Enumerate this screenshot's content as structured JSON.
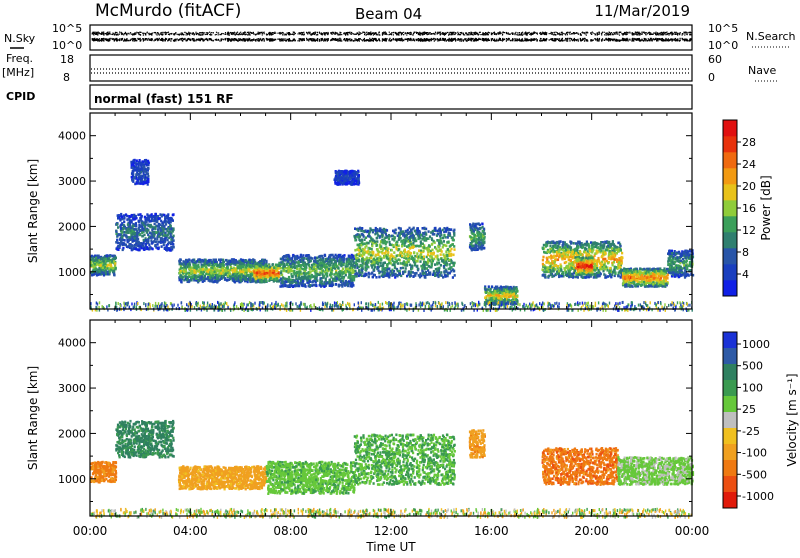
{
  "header": {
    "station": "McMurdo (fitACF)",
    "beam": "Beam 04",
    "date": "11/Mar/2019"
  },
  "noise_panel": {
    "left_label": "N.Sky",
    "right_label": "N.Search",
    "left_ticks": [
      "10^5",
      "10^0"
    ],
    "right_ticks": [
      "10^5",
      "10^0"
    ]
  },
  "freq_panel": {
    "left_label_1": "Freq.",
    "left_label_2": "[MHz]",
    "left_ticks": [
      "18",
      "8"
    ],
    "right_label": "Nave",
    "right_ticks": [
      "60",
      "0"
    ]
  },
  "cpid_panel": {
    "label": "CPID",
    "text": "normal (fast) 151 RF"
  },
  "x_axis": {
    "label": "Time UT",
    "ticks": [
      "00:00",
      "04:00",
      "08:00",
      "12:00",
      "16:00",
      "20:00",
      "00:00"
    ]
  },
  "chart_data": [
    {
      "type": "heatmap",
      "name": "power",
      "ylabel": "Slant Range [km]",
      "yticks": [
        "1000",
        "2000",
        "3000",
        "4000"
      ],
      "ylim": [
        180,
        4500
      ],
      "xlim_hours": [
        0,
        24
      ],
      "colorbar": {
        "label": "Power [dB]",
        "ticks": [
          "4",
          "8",
          "12",
          "16",
          "20",
          "24",
          "28"
        ],
        "range": [
          0,
          32
        ],
        "colors": [
          "#1020e6",
          "#1a3fbf",
          "#2855a8",
          "#2f7f6f",
          "#3b9f5a",
          "#8fcc3a",
          "#e8c21a",
          "#f29a12",
          "#f06a10",
          "#e8320c",
          "#e01010"
        ]
      },
      "echo_regions": [
        {
          "t": [
            0.0,
            1.0
          ],
          "r": [
            950,
            1400
          ],
          "level": 16
        },
        {
          "t": [
            1.0,
            3.3
          ],
          "r": [
            1500,
            2300
          ],
          "level": 9
        },
        {
          "t": [
            1.6,
            2.3
          ],
          "r": [
            2950,
            3500
          ],
          "level": 6
        },
        {
          "t": [
            3.5,
            7.0
          ],
          "r": [
            800,
            1300
          ],
          "level": 16
        },
        {
          "t": [
            6.5,
            7.5
          ],
          "r": [
            800,
            1200
          ],
          "level": 24
        },
        {
          "t": [
            7.5,
            10.5
          ],
          "r": [
            700,
            1400
          ],
          "level": 14
        },
        {
          "t": [
            9.7,
            10.7
          ],
          "r": [
            2950,
            3250
          ],
          "level": 5
        },
        {
          "t": [
            10.5,
            14.5
          ],
          "r": [
            900,
            2000
          ],
          "level": 16
        },
        {
          "t": [
            15.1,
            15.7
          ],
          "r": [
            1500,
            2100
          ],
          "level": 13
        },
        {
          "t": [
            15.7,
            17.0
          ],
          "r": [
            300,
            700
          ],
          "level": 18
        },
        {
          "t": [
            18.0,
            21.2
          ],
          "r": [
            900,
            1700
          ],
          "level": 20
        },
        {
          "t": [
            19.3,
            20.0
          ],
          "r": [
            950,
            1350
          ],
          "level": 28
        },
        {
          "t": [
            21.2,
            23.0
          ],
          "r": [
            700,
            1100
          ],
          "level": 22
        },
        {
          "t": [
            23.0,
            24.0
          ],
          "r": [
            900,
            1500
          ],
          "level": 12
        }
      ]
    },
    {
      "type": "heatmap",
      "name": "velocity",
      "ylabel": "Slant Range [km]",
      "yticks": [
        "1000",
        "2000",
        "3000",
        "4000"
      ],
      "ylim": [
        180,
        4500
      ],
      "xlim_hours": [
        0,
        24
      ],
      "colorbar": {
        "label": "Velocity [m s⁻¹]",
        "ticks": [
          "1000",
          "500",
          "100",
          "25",
          "-25",
          "-100",
          "-500",
          "-1000"
        ],
        "colors": [
          "#1a32d6",
          "#2e5aa6",
          "#2f8060",
          "#3a9a50",
          "#66c83a",
          "#bfbfbf",
          "#f0c020",
          "#f0a020",
          "#ef7a12",
          "#ec4f12",
          "#e01a0a"
        ]
      },
      "echo_regions": [
        {
          "t": [
            0.0,
            1.0
          ],
          "r": [
            950,
            1400
          ],
          "velocity": -300
        },
        {
          "t": [
            1.0,
            3.3
          ],
          "r": [
            1500,
            2300
          ],
          "velocity": 300
        },
        {
          "t": [
            3.5,
            7.0
          ],
          "r": [
            800,
            1300
          ],
          "velocity": -150
        },
        {
          "t": [
            7.0,
            10.5
          ],
          "r": [
            700,
            1400
          ],
          "velocity": 80
        },
        {
          "t": [
            10.5,
            14.5
          ],
          "r": [
            900,
            2000
          ],
          "velocity": 100
        },
        {
          "t": [
            15.1,
            15.7
          ],
          "r": [
            1500,
            2100
          ],
          "velocity": -200
        },
        {
          "t": [
            18.0,
            21.0
          ],
          "r": [
            900,
            1700
          ],
          "velocity": -400
        },
        {
          "t": [
            21.0,
            24.0
          ],
          "r": [
            900,
            1500
          ],
          "velocity": 40
        }
      ]
    }
  ]
}
